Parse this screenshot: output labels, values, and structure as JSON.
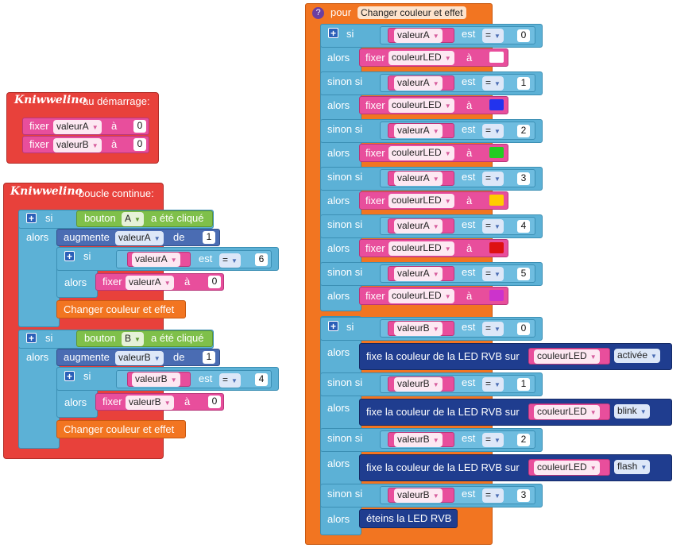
{
  "logo_text": "Kniwwelino",
  "startup": {
    "header": "au démarrage:",
    "rows": [
      {
        "verb": "fixer",
        "var": "valeurA",
        "to": "à",
        "value": "0"
      },
      {
        "verb": "fixer",
        "var": "valeurB",
        "to": "à",
        "value": "0"
      }
    ]
  },
  "loop": {
    "header": "boucle continue:",
    "words": {
      "si": "si",
      "alors": "alors",
      "increase": "augmente",
      "de": "de",
      "est": "est",
      "eq": "=",
      "fixer": "fixer",
      "to": "à",
      "clicked": "a été cliqué",
      "bouton": "bouton"
    },
    "ifA": {
      "button": "A",
      "var": "valeurA",
      "inc": "1",
      "cmp": "6",
      "set": "0",
      "call": "Changer couleur et effet"
    },
    "ifB": {
      "button": "B",
      "var": "valeurB",
      "inc": "1",
      "cmp": "4",
      "set": "0",
      "call": "Changer couleur et effet"
    }
  },
  "proc": {
    "header_pour": "pour",
    "name": "Changer couleur et effet",
    "help_icon": "?",
    "words": {
      "si": "si",
      "sinon_si": "sinon si",
      "alors": "alors",
      "est": "est",
      "eq": "=",
      "fixer": "fixer",
      "to": "à"
    },
    "colorRows": [
      {
        "var": "valeurA",
        "n": "0",
        "target": "couleurLED",
        "color": "#ffffff"
      },
      {
        "var": "valeurA",
        "n": "1",
        "target": "couleurLED",
        "color": "#2233ee"
      },
      {
        "var": "valeurA",
        "n": "2",
        "target": "couleurLED",
        "color": "#22cc22"
      },
      {
        "var": "valeurA",
        "n": "3",
        "target": "couleurLED",
        "color": "#ffcc00"
      },
      {
        "var": "valeurA",
        "n": "4",
        "target": "couleurLED",
        "color": "#dd1111"
      },
      {
        "var": "valeurA",
        "n": "5",
        "target": "couleurLED",
        "color": "#cc33cc"
      }
    ],
    "effectRows": [
      {
        "var": "valeurB",
        "n": "0",
        "action": "fixe la couleur de la LED RVB sur",
        "target": "couleurLED",
        "mode": "activée"
      },
      {
        "var": "valeurB",
        "n": "1",
        "action": "fixe la couleur de la LED RVB sur",
        "target": "couleurLED",
        "mode": "blink"
      },
      {
        "var": "valeurB",
        "n": "2",
        "action": "fixe la couleur de la LED RVB sur",
        "target": "couleurLED",
        "mode": "flash"
      },
      {
        "var": "valeurB",
        "n": "3",
        "action": "éteins la LED RVB"
      }
    ]
  }
}
